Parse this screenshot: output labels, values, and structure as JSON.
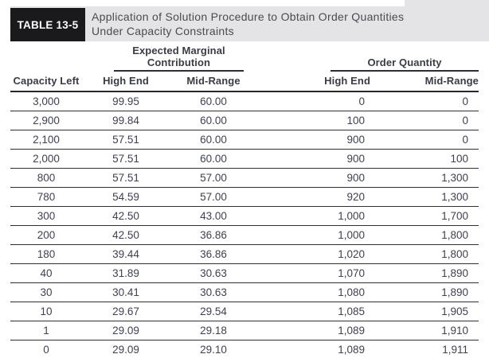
{
  "header": {
    "label": "TABLE 13-5",
    "title_line1": "Application of Solution Procedure to Obtain Order Quantities",
    "title_line2": "Under Capacity Constraints"
  },
  "table": {
    "group_headers": [
      {
        "label": "Expected Marginal Contribution"
      },
      {
        "label": "Order Quantity"
      }
    ],
    "columns": [
      "Capacity Left",
      "High End",
      "Mid-Range",
      "High End",
      "Mid-Range"
    ],
    "rows": [
      [
        "3,000",
        "99.95",
        "60.00",
        "0",
        "0"
      ],
      [
        "2,900",
        "99.84",
        "60.00",
        "100",
        "0"
      ],
      [
        "2,100",
        "57.51",
        "60.00",
        "900",
        "0"
      ],
      [
        "2,000",
        "57.51",
        "60.00",
        "900",
        "100"
      ],
      [
        "800",
        "57.51",
        "57.00",
        "900",
        "1,300"
      ],
      [
        "780",
        "54.59",
        "57.00",
        "920",
        "1,300"
      ],
      [
        "300",
        "42.50",
        "43.00",
        "1,000",
        "1,700"
      ],
      [
        "200",
        "42.50",
        "36.86",
        "1,000",
        "1,800"
      ],
      [
        "180",
        "39.44",
        "36.86",
        "1,020",
        "1,800"
      ],
      [
        "40",
        "31.89",
        "30.63",
        "1,070",
        "1,890"
      ],
      [
        "30",
        "30.41",
        "30.63",
        "1,080",
        "1,890"
      ],
      [
        "10",
        "29.67",
        "29.54",
        "1,085",
        "1,905"
      ],
      [
        "1",
        "29.09",
        "29.18",
        "1,089",
        "1,910"
      ],
      [
        "0",
        "29.09",
        "29.10",
        "1,089",
        "1,911"
      ]
    ]
  },
  "colors": {
    "band_background": "#e4e4e6",
    "label_background": "#1a1a1c",
    "label_text": "#ffffff",
    "title_text": "#4a4b50",
    "header_text": "#393c44",
    "body_text": "#3e4250",
    "rule": "#2c2e34"
  }
}
